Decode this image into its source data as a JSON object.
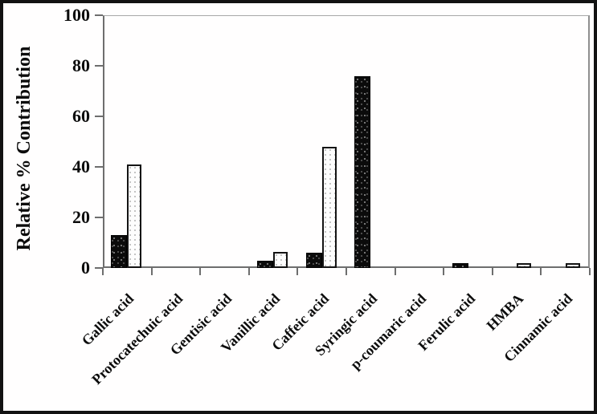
{
  "figure": {
    "background": "#ffffff",
    "frame_color": "#121212",
    "bar_dark_color": "#0b0b0b",
    "bar_light_color": "#fdfdfd",
    "axis_color": "#6e6e6e"
  },
  "chart_data": {
    "type": "bar",
    "title": "",
    "xlabel": "",
    "ylabel": "Relative % Contribution",
    "ylim": [
      0,
      100
    ],
    "yticks": [
      0,
      20,
      40,
      60,
      80,
      100
    ],
    "grid": false,
    "legend_position": "none",
    "categories": [
      "Gallic acid",
      "Protocatechuic acid",
      "Gentisic acid",
      "Vanillic acid",
      "Caffeic acid",
      "Syringic acid",
      "p-coumaric acid",
      "Ferulic acid",
      "HMBA",
      "Cinnamic acid"
    ],
    "series": [
      {
        "name": "black dotted bars",
        "pattern": "black with white speckles",
        "values": [
          13,
          0,
          0,
          3,
          6,
          76,
          0,
          2,
          0,
          0
        ]
      },
      {
        "name": "white dotted bars",
        "pattern": "white with fine gray dots, black outline",
        "values": [
          41,
          0,
          0,
          6.5,
          48,
          0,
          0,
          0,
          2,
          2
        ]
      }
    ]
  }
}
